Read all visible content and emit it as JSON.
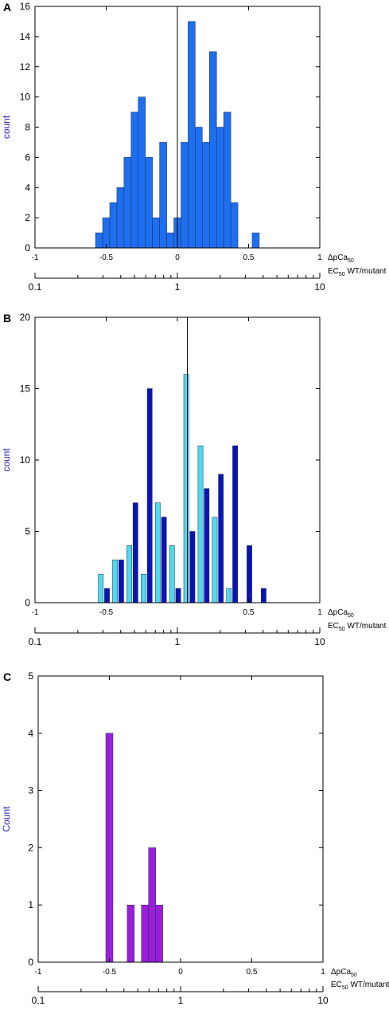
{
  "chart_data": [
    {
      "type": "bar",
      "panel_label": "A",
      "ylabel": "count",
      "xlabel": "ΔpCa50",
      "xlabel_main": "ΔpCa",
      "xlabel_sub": "50",
      "secondary_xlabel": "EC50 WT/mutant",
      "secondary_xlabel_parts": {
        "pre": "EC",
        "sub": "50",
        "post": " WT/mutant"
      },
      "xlim": [
        -1,
        1
      ],
      "ylim": [
        0,
        16
      ],
      "yticks": [
        0,
        2,
        4,
        6,
        8,
        10,
        12,
        14,
        16
      ],
      "xticks": [
        -1,
        -0.5,
        0,
        0.5,
        1
      ],
      "xtick_labels": [
        "-1",
        "-0.5",
        "0",
        "0.5",
        "1"
      ],
      "secondary_xticks": [
        0.1,
        1,
        10
      ],
      "secondary_xtick_labels": [
        "0.1",
        "1",
        "10"
      ],
      "vline_x": 0,
      "bin_width": 0.05,
      "series": [
        {
          "color": "#1e6fef",
          "x": [
            -0.55,
            -0.5,
            -0.45,
            -0.4,
            -0.35,
            -0.3,
            -0.25,
            -0.2,
            -0.15,
            -0.1,
            -0.05,
            0.0,
            0.05,
            0.1,
            0.15,
            0.2,
            0.25,
            0.3,
            0.35,
            0.4,
            0.45,
            0.55
          ],
          "values": [
            1,
            2,
            3,
            4,
            6,
            9,
            10,
            6,
            2,
            7,
            1,
            2,
            7,
            15,
            8,
            7,
            13,
            8,
            9,
            3,
            0,
            1
          ]
        }
      ]
    },
    {
      "type": "bar",
      "panel_label": "B",
      "ylabel": "count",
      "xlabel": "ΔpCa50",
      "xlabel_main": "ΔpCa",
      "xlabel_sub": "50",
      "secondary_xlabel": "EC50 WT/mutant",
      "secondary_xlabel_parts": {
        "pre": "EC",
        "sub": "50",
        "post": " WT/mutant"
      },
      "xlim": [
        -1,
        1
      ],
      "ylim": [
        0,
        20
      ],
      "yticks": [
        0,
        5,
        10,
        15,
        20
      ],
      "xticks": [
        -1,
        -0.5,
        0,
        0.5,
        1
      ],
      "xtick_labels": [
        "-1",
        "-0.5",
        "",
        "0.5",
        "1"
      ],
      "secondary_xticks": [
        0.1,
        1,
        10
      ],
      "secondary_xtick_labels": [
        "0.1",
        "1",
        "10"
      ],
      "vline_x": 0.07,
      "bin_width": 0.1,
      "series": [
        {
          "color": "#0a14b4",
          "x": [
            -0.5,
            -0.4,
            -0.3,
            -0.2,
            -0.1,
            0.0,
            0.1,
            0.2,
            0.3,
            0.4,
            0.5,
            0.6
          ],
          "values": [
            1,
            3,
            7,
            15,
            6,
            1,
            5,
            8,
            9,
            11,
            4,
            1
          ]
        },
        {
          "color": "#4fd9ef",
          "x": [
            -0.5,
            -0.4,
            -0.3,
            -0.2,
            -0.1,
            0.0,
            0.1,
            0.2,
            0.3,
            0.4,
            0.5,
            0.6
          ],
          "values": [
            2,
            3,
            4,
            2,
            7,
            4,
            16,
            11,
            6,
            1,
            0,
            0
          ]
        }
      ]
    },
    {
      "type": "bar",
      "panel_label": "C",
      "ylabel": "Count",
      "xlabel": "ΔpCa50",
      "xlabel_main": "ΔpCa",
      "xlabel_sub": "50",
      "secondary_xlabel": "EC50 WT/mutant",
      "secondary_xlabel_parts": {
        "pre": "EC",
        "sub": "50",
        "post": " WT/mutant"
      },
      "xlim": [
        -1,
        1
      ],
      "ylim": [
        0,
        5
      ],
      "yticks": [
        0,
        1,
        2,
        3,
        4,
        5
      ],
      "xticks": [
        -1,
        -0.5,
        0,
        0.5,
        1
      ],
      "xtick_labels": [
        "-1",
        "-0.5",
        "0",
        "0.5",
        "1"
      ],
      "secondary_xticks": [
        0.1,
        1,
        10
      ],
      "secondary_xtick_labels": [
        "0.1",
        "1",
        "10"
      ],
      "vline_x": null,
      "bin_width": 0.05,
      "series": [
        {
          "color": "#9a1fd9",
          "x": [
            -0.5,
            -0.35,
            -0.25,
            -0.2,
            -0.15
          ],
          "values": [
            4,
            1,
            1,
            2,
            1
          ]
        }
      ]
    }
  ]
}
